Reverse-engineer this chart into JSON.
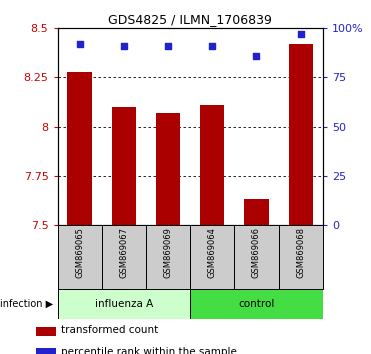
{
  "title": "GDS4825 / ILMN_1706839",
  "categories": [
    "GSM869065",
    "GSM869067",
    "GSM869069",
    "GSM869064",
    "GSM869066",
    "GSM869068"
  ],
  "bar_color": "#aa0000",
  "dot_color": "#2222cc",
  "transformed_counts": [
    8.28,
    8.1,
    8.07,
    8.11,
    7.63,
    8.42
  ],
  "percentile_ranks": [
    92,
    91,
    91,
    91,
    86,
    97
  ],
  "ylim_left": [
    7.5,
    8.5
  ],
  "yticks_left": [
    7.5,
    7.75,
    8.0,
    8.25,
    8.5
  ],
  "ytick_labels_left": [
    "7.5",
    "7.75",
    "8",
    "8.25",
    "8.5"
  ],
  "ylim_right": [
    0,
    100
  ],
  "yticks_right": [
    0,
    25,
    50,
    75,
    100
  ],
  "ytick_labels_right": [
    "0",
    "25",
    "50",
    "75",
    "100%"
  ],
  "ylabel_left_color": "#cc0000",
  "ylabel_right_color": "#2222cc",
  "bar_width": 0.55,
  "infection_label": "infection",
  "legend_bar_label": "transformed count",
  "legend_dot_label": "percentile rank within the sample",
  "influenza_color": "#ccffcc",
  "control_color": "#44dd44",
  "grid_yticks": [
    7.75,
    8.0,
    8.25
  ],
  "sample_bg": "#cccccc"
}
